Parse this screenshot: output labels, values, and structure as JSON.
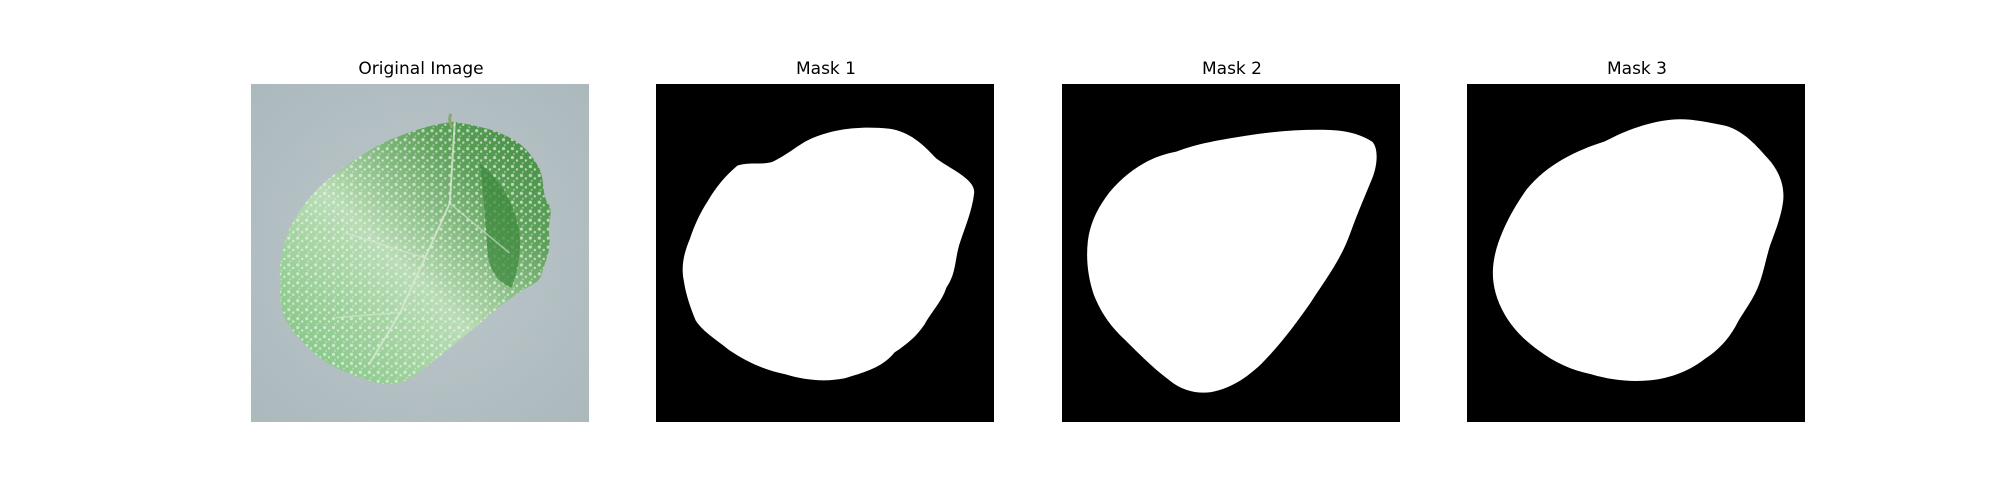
{
  "figure": {
    "panels": [
      {
        "title": "Original Image",
        "content": "photo of a green leaf with white speckles on a pale grey-blue background"
      },
      {
        "title": "Mask 1",
        "content": "binary segmentation mask"
      },
      {
        "title": "Mask 2",
        "content": "binary segmentation mask"
      },
      {
        "title": "Mask 3",
        "content": "binary segmentation mask"
      }
    ],
    "colors": {
      "background": "#ffffff",
      "photo_background": "#b7c3c6",
      "leaf_dark": "#3e8a3e",
      "leaf_light": "#8dcc8a",
      "speckle": "#eef3ee",
      "mask_foreground": "#ffffff",
      "mask_background": "#000000"
    }
  }
}
